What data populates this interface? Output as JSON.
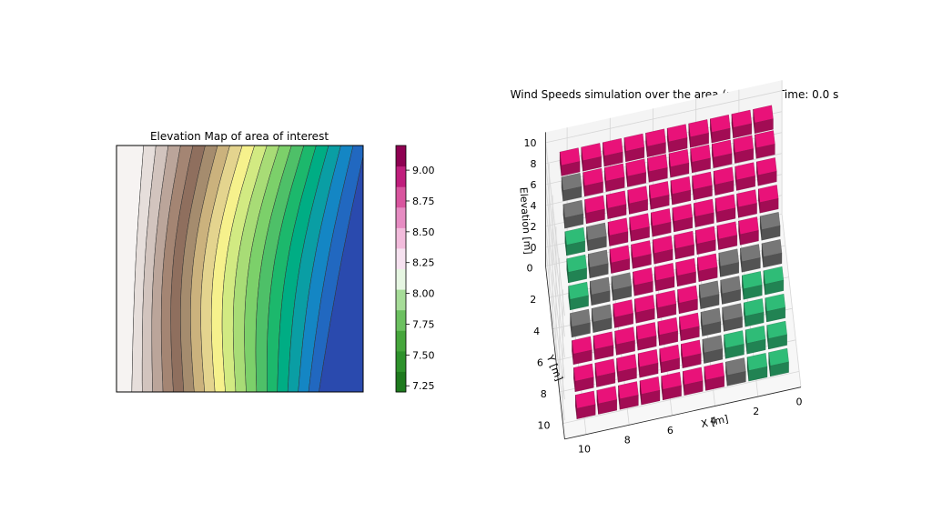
{
  "chart_data": [
    {
      "type": "heatmap",
      "subtype": "filled-contour",
      "title": "Elevation Map of area of interest",
      "axes_visible": false,
      "colormap": "terrain",
      "colorbar": {
        "min": 7.2,
        "max": 9.2,
        "tick_values": [
          7.25,
          7.5,
          7.75,
          8.0,
          8.25,
          8.5,
          8.75,
          9.0
        ],
        "tick_labels": [
          "7.25",
          "7.50",
          "7.75",
          "8.00",
          "8.25",
          "8.50",
          "8.75",
          "9.00"
        ],
        "colors": [
          "#1e7a1e",
          "#2e922c",
          "#46a63c",
          "#6cc060",
          "#a6dc98",
          "#e6f6e2",
          "#f6e2f0",
          "#f2bcdc",
          "#e68cc2",
          "#d8559e",
          "#bf1e7c",
          "#8e0152"
        ]
      },
      "band_colors": [
        "#f6f3f2",
        "#e6dedb",
        "#d2c4be",
        "#bba59a",
        "#a48573",
        "#8f6f5e",
        "#a58c6e",
        "#cbb27d",
        "#e4d48e",
        "#f6f18c",
        "#d2ea82",
        "#a8dc76",
        "#7cd06a",
        "#4ec068",
        "#1cb86c",
        "#00ad84",
        "#0a9ea4",
        "#1486c4",
        "#2168c0",
        "#2a4aae"
      ],
      "gradient_direction": "elevation decreases from left (high) to right (low), bands curve toward upper-right"
    },
    {
      "type": "bar3d",
      "title": "Wind Speeds simulation over the area (m/s). SimTime: 0.0 s",
      "xlabel": "X [m]",
      "ylabel": "Y [m]",
      "zlabel": "Elevation [m]",
      "x_ticks": [
        "10",
        "8",
        "6",
        "4",
        "2",
        "0"
      ],
      "y_ticks": [
        "0",
        "2",
        "4",
        "6",
        "8",
        "10"
      ],
      "z_ticks": [
        "0",
        "2",
        "4",
        "6",
        "8",
        "10"
      ],
      "xlim": [
        0,
        11
      ],
      "ylim": [
        0,
        11
      ],
      "zlim": [
        0,
        11
      ],
      "grid": true,
      "grid_columns": 10,
      "grid_rows": 10,
      "colors": {
        "wind_high": "#d0106c",
        "wind_mid": "#6a6a6a",
        "wind_low": "#2aa86a"
      },
      "rows": [
        {
          "y": 0,
          "z": 10.2
        },
        {
          "y": 1,
          "z": 9.3
        },
        {
          "y": 2,
          "z": 8.2
        },
        {
          "y": 3,
          "z": 7.1
        },
        {
          "y": 4,
          "z": 6.0
        },
        {
          "y": 5,
          "z": 4.9
        },
        {
          "y": 6,
          "z": 3.8
        },
        {
          "y": 7,
          "z": 2.7
        },
        {
          "y": 8,
          "z": 1.6
        },
        {
          "y": 9,
          "z": 0.5
        }
      ],
      "wind_levels": [
        [
          0,
          0,
          0,
          0,
          0,
          0,
          0,
          0,
          0,
          0
        ],
        [
          1,
          0,
          0,
          0,
          0,
          0,
          0,
          0,
          0,
          0
        ],
        [
          1,
          0,
          0,
          0,
          0,
          0,
          0,
          0,
          0,
          0
        ],
        [
          2,
          1,
          0,
          0,
          0,
          0,
          0,
          0,
          0,
          0
        ],
        [
          2,
          1,
          0,
          0,
          0,
          0,
          0,
          0,
          0,
          1
        ],
        [
          2,
          1,
          1,
          0,
          0,
          0,
          0,
          1,
          1,
          1
        ],
        [
          1,
          1,
          0,
          0,
          0,
          0,
          1,
          1,
          2,
          2
        ],
        [
          0,
          0,
          0,
          0,
          0,
          0,
          1,
          1,
          2,
          2
        ],
        [
          0,
          0,
          0,
          0,
          0,
          0,
          1,
          2,
          2,
          2
        ],
        [
          0,
          0,
          0,
          0,
          0,
          0,
          0,
          1,
          2,
          2
        ]
      ]
    }
  ]
}
